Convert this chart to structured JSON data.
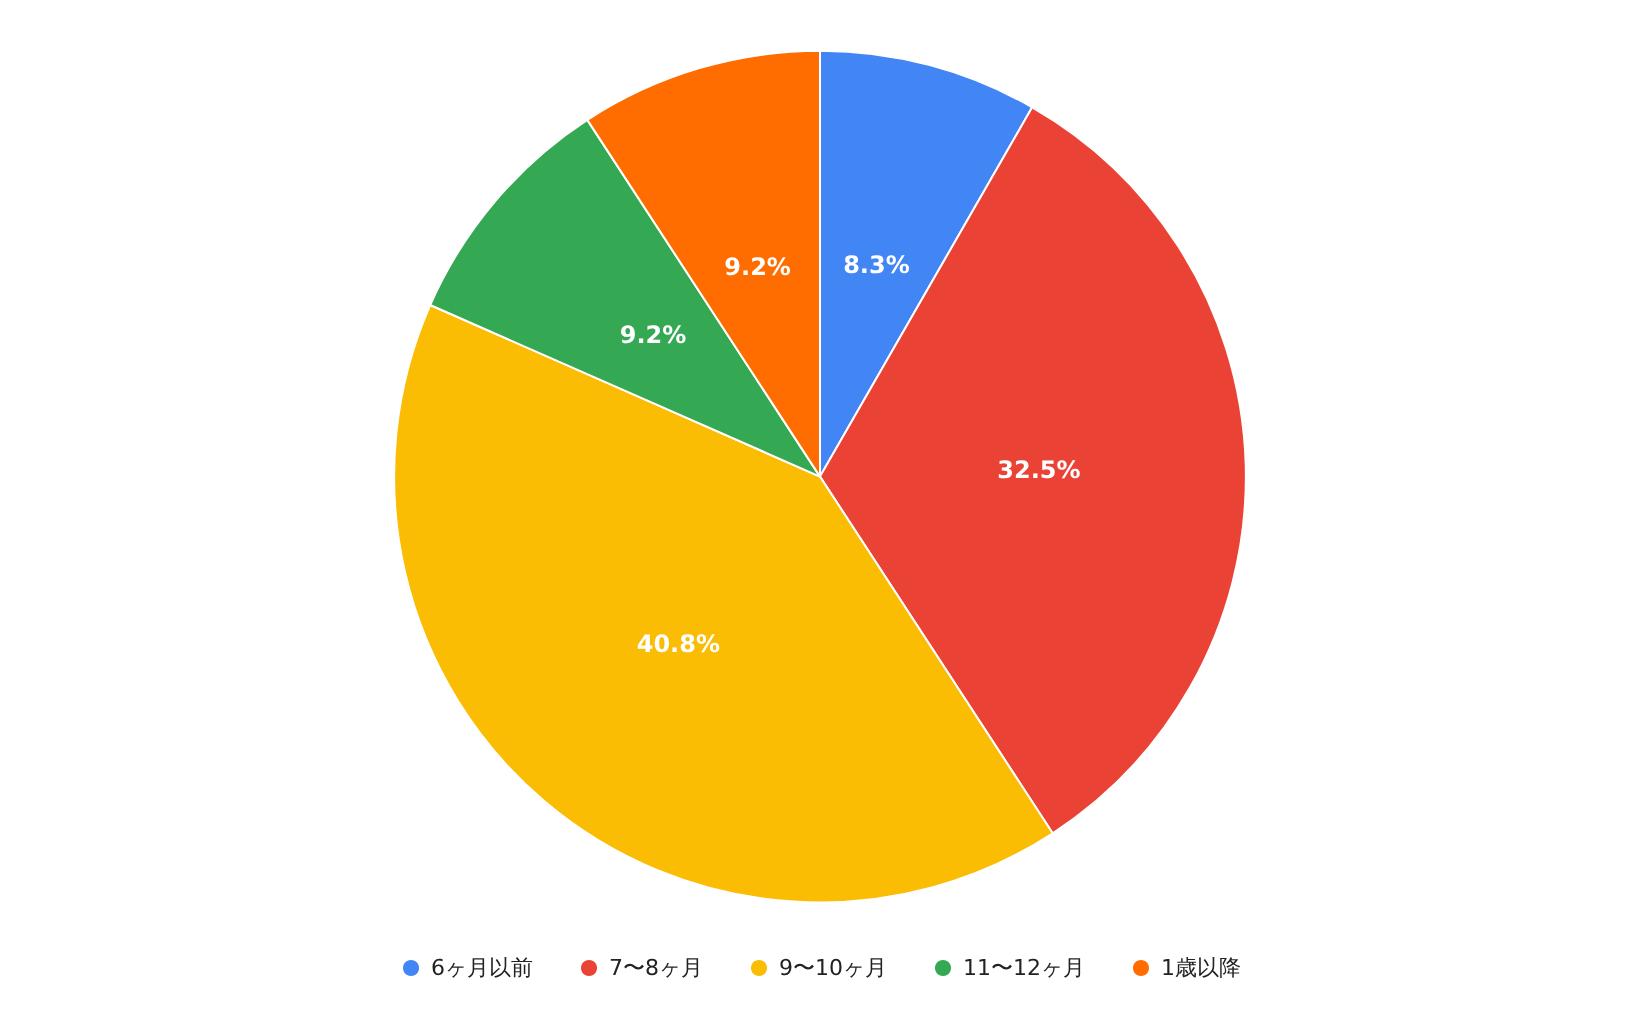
{
  "chart_data": {
    "type": "pie",
    "categories": [
      "6ヶ月以前",
      "7〜8ヶ月",
      "9〜10ヶ月",
      "11〜12ヶ月",
      "1歳以降"
    ],
    "values": [
      8.3,
      32.5,
      40.8,
      9.2,
      9.2
    ],
    "value_labels": [
      "8.3%",
      "32.5%",
      "40.8%",
      "9.2%",
      "9.2%"
    ],
    "colors": [
      "#4285f4",
      "#ea4335",
      "#fbbc04",
      "#34a853",
      "#ff6d01"
    ],
    "legend": "bottom"
  }
}
